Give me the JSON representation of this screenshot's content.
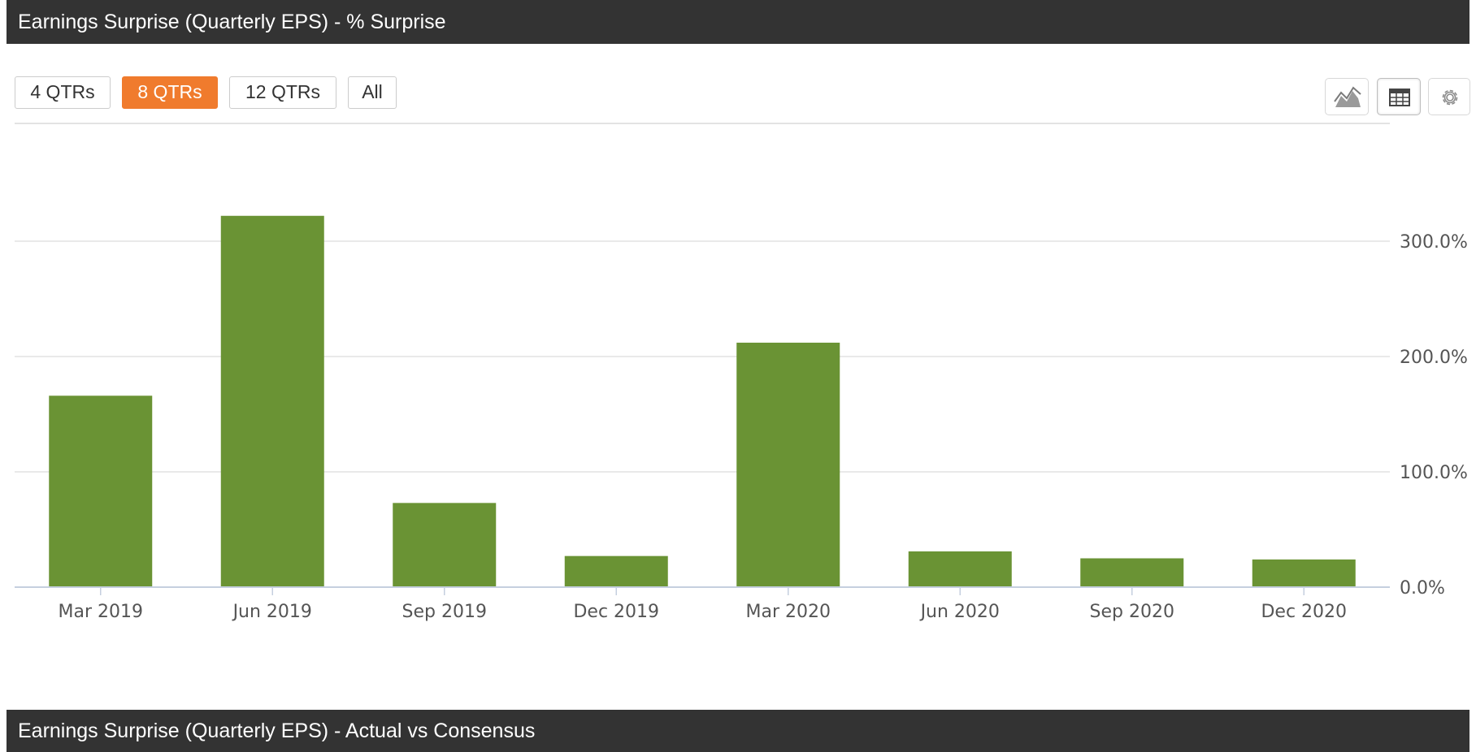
{
  "header": {
    "title": "Earnings Surprise (Quarterly EPS) - % Surprise"
  },
  "range_buttons": [
    {
      "label": "4 QTRs",
      "active": false
    },
    {
      "label": "8 QTRs",
      "active": true
    },
    {
      "label": "12 QTRs",
      "active": false
    },
    {
      "label": "All",
      "active": false
    }
  ],
  "toolbar_icons": [
    "area-chart-icon",
    "table-icon",
    "gear-icon"
  ],
  "colors": {
    "accent": "#f07b2d",
    "bar": "#6a9334",
    "header_bg": "#333333"
  },
  "chart_data": {
    "type": "bar",
    "categories": [
      "Mar 2019",
      "Jun 2019",
      "Sep 2019",
      "Dec 2019",
      "Mar 2020",
      "Jun 2020",
      "Sep 2020",
      "Dec 2020"
    ],
    "values": [
      166,
      322,
      73,
      27,
      212,
      31,
      25,
      24
    ],
    "ylim": [
      0,
      300
    ],
    "yticks": [
      0,
      100,
      200,
      300
    ],
    "ytick_labels": [
      "0.0%",
      "100.0%",
      "200.0%",
      "300.0%"
    ],
    "y_axis_position": "right",
    "grid": true,
    "legend": "none",
    "xlabel": "",
    "ylabel": ""
  },
  "footer": {
    "title": "Earnings Surprise (Quarterly EPS) - Actual vs Consensus"
  }
}
